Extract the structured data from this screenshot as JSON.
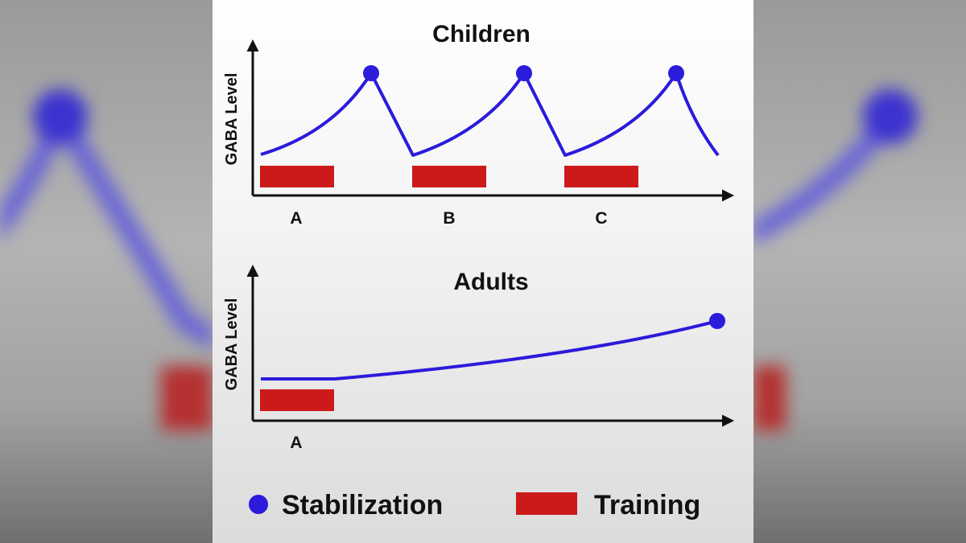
{
  "colors": {
    "curve": "#2b1bdb",
    "marker": "#2b1bdb",
    "training": "#cc1a1a",
    "axis": "#111111"
  },
  "children_panel": {
    "title": "Children",
    "y_axis_label": "GABA Level",
    "x_labels": [
      "A",
      "B",
      "C"
    ]
  },
  "adults_panel": {
    "title": "Adults",
    "y_axis_label": "GABA Level",
    "x_labels": [
      "A"
    ]
  },
  "legend": {
    "stabilization_label": "Stabilization",
    "training_label": "Training"
  }
}
